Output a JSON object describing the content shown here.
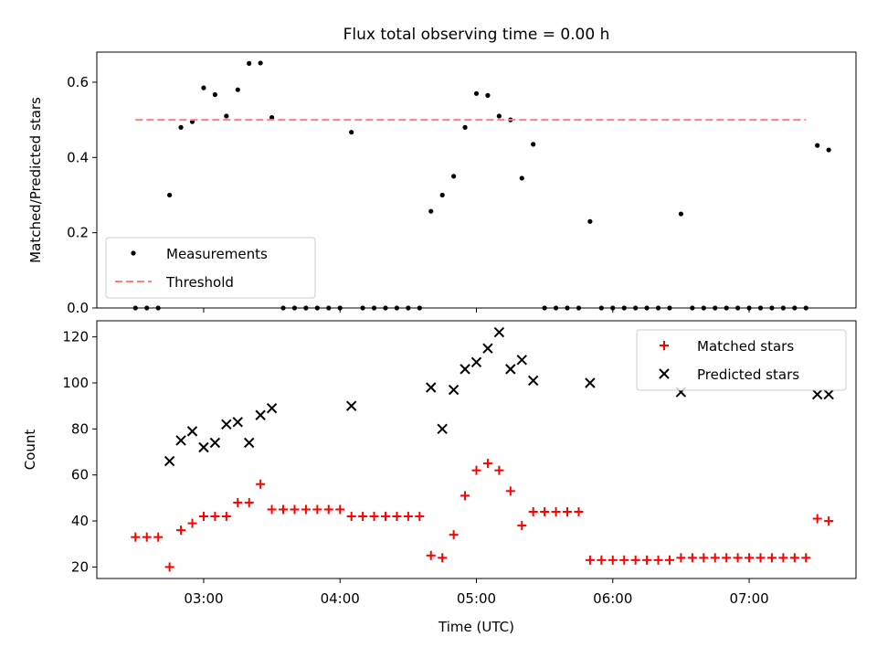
{
  "chart_data": [
    {
      "type": "scatter",
      "title": "Flux total observing time = 0.00 h",
      "xlabel": "",
      "ylabel": "Matched/Predicted stars",
      "xlim": [
        "02:13",
        "07:47"
      ],
      "ylim": [
        0,
        0.68
      ],
      "yticks": [
        0.0,
        0.2,
        0.4,
        0.6
      ],
      "ytick_labels": [
        "0.0",
        "0.2",
        "0.4",
        "0.6"
      ],
      "legend_placement": "lower-left",
      "series": [
        {
          "name": "Measurements",
          "marker": "dot",
          "color": "#000000",
          "points": [
            [
              "02:30",
              0.0
            ],
            [
              "02:35",
              0.0
            ],
            [
              "02:40",
              0.0
            ],
            [
              "02:45",
              0.3
            ],
            [
              "02:50",
              0.48
            ],
            [
              "02:55",
              0.495
            ],
            [
              "03:00",
              0.585
            ],
            [
              "03:05",
              0.567
            ],
            [
              "03:10",
              0.51
            ],
            [
              "03:15",
              0.58
            ],
            [
              "03:20",
              0.65
            ],
            [
              "03:25",
              0.651
            ],
            [
              "03:30",
              0.506
            ],
            [
              "03:35",
              0.0
            ],
            [
              "03:40",
              0.0
            ],
            [
              "03:45",
              0.0
            ],
            [
              "03:50",
              0.0
            ],
            [
              "03:55",
              0.0
            ],
            [
              "04:00",
              0.0
            ],
            [
              "04:05",
              0.467
            ],
            [
              "04:10",
              0.0
            ],
            [
              "04:15",
              0.0
            ],
            [
              "04:20",
              0.0
            ],
            [
              "04:25",
              0.0
            ],
            [
              "04:30",
              0.0
            ],
            [
              "04:35",
              0.0
            ],
            [
              "04:40",
              0.257
            ],
            [
              "04:45",
              0.3
            ],
            [
              "04:50",
              0.35
            ],
            [
              "04:55",
              0.48
            ],
            [
              "05:00",
              0.57
            ],
            [
              "05:05",
              0.565
            ],
            [
              "05:10",
              0.51
            ],
            [
              "05:15",
              0.5
            ],
            [
              "05:20",
              0.345
            ],
            [
              "05:25",
              0.435
            ],
            [
              "05:30",
              0.0
            ],
            [
              "05:35",
              0.0
            ],
            [
              "05:40",
              0.0
            ],
            [
              "05:45",
              0.0
            ],
            [
              "05:50",
              0.23
            ],
            [
              "05:55",
              0.0
            ],
            [
              "06:00",
              0.0
            ],
            [
              "06:05",
              0.0
            ],
            [
              "06:10",
              0.0
            ],
            [
              "06:15",
              0.0
            ],
            [
              "06:20",
              0.0
            ],
            [
              "06:25",
              0.0
            ],
            [
              "06:30",
              0.25
            ],
            [
              "06:35",
              0.0
            ],
            [
              "06:40",
              0.0
            ],
            [
              "06:45",
              0.0
            ],
            [
              "06:50",
              0.0
            ],
            [
              "06:55",
              0.0
            ],
            [
              "07:00",
              0.0
            ],
            [
              "07:05",
              0.0
            ],
            [
              "07:10",
              0.0
            ],
            [
              "07:15",
              0.0
            ],
            [
              "07:20",
              0.0
            ],
            [
              "07:25",
              0.0
            ],
            [
              "07:30",
              0.432
            ],
            [
              "07:35",
              0.42
            ]
          ]
        },
        {
          "name": "Threshold",
          "line": "dashed",
          "color": "#ff7f7f",
          "points": [
            [
              "02:30",
              0.5
            ],
            [
              "07:25",
              0.5
            ]
          ]
        }
      ]
    },
    {
      "type": "scatter",
      "title": "",
      "xlabel": "Time (UTC)",
      "ylabel": "Count",
      "xlim": [
        "02:13",
        "07:47"
      ],
      "ylim": [
        15,
        127
      ],
      "yticks": [
        20,
        40,
        60,
        80,
        100,
        120
      ],
      "ytick_labels": [
        "20",
        "40",
        "60",
        "80",
        "100",
        "120"
      ],
      "xticks": [
        "03:00",
        "04:00",
        "05:00",
        "06:00",
        "07:00"
      ],
      "xtick_labels": [
        "03:00",
        "04:00",
        "05:00",
        "06:00",
        "07:00"
      ],
      "legend_placement": "top-right",
      "series": [
        {
          "name": "Matched stars",
          "marker": "plus",
          "color": "#ff0000",
          "points": [
            [
              "02:30",
              33
            ],
            [
              "02:35",
              33
            ],
            [
              "02:40",
              33
            ],
            [
              "02:45",
              20
            ],
            [
              "02:50",
              36
            ],
            [
              "02:55",
              39
            ],
            [
              "03:00",
              42
            ],
            [
              "03:05",
              42
            ],
            [
              "03:10",
              42
            ],
            [
              "03:15",
              48
            ],
            [
              "03:20",
              48
            ],
            [
              "03:25",
              56
            ],
            [
              "03:30",
              45
            ],
            [
              "03:35",
              45
            ],
            [
              "03:40",
              45
            ],
            [
              "03:45",
              45
            ],
            [
              "03:50",
              45
            ],
            [
              "03:55",
              45
            ],
            [
              "04:00",
              45
            ],
            [
              "04:05",
              42
            ],
            [
              "04:10",
              42
            ],
            [
              "04:15",
              42
            ],
            [
              "04:20",
              42
            ],
            [
              "04:25",
              42
            ],
            [
              "04:30",
              42
            ],
            [
              "04:35",
              42
            ],
            [
              "04:40",
              25
            ],
            [
              "04:45",
              24
            ],
            [
              "04:50",
              34
            ],
            [
              "04:55",
              51
            ],
            [
              "05:00",
              62
            ],
            [
              "05:05",
              65
            ],
            [
              "05:10",
              62
            ],
            [
              "05:15",
              53
            ],
            [
              "05:20",
              38
            ],
            [
              "05:25",
              44
            ],
            [
              "05:30",
              44
            ],
            [
              "05:35",
              44
            ],
            [
              "05:40",
              44
            ],
            [
              "05:45",
              44
            ],
            [
              "05:50",
              23
            ],
            [
              "05:55",
              23
            ],
            [
              "06:00",
              23
            ],
            [
              "06:05",
              23
            ],
            [
              "06:10",
              23
            ],
            [
              "06:15",
              23
            ],
            [
              "06:20",
              23
            ],
            [
              "06:25",
              23
            ],
            [
              "06:30",
              24
            ],
            [
              "06:35",
              24
            ],
            [
              "06:40",
              24
            ],
            [
              "06:45",
              24
            ],
            [
              "06:50",
              24
            ],
            [
              "06:55",
              24
            ],
            [
              "07:00",
              24
            ],
            [
              "07:05",
              24
            ],
            [
              "07:10",
              24
            ],
            [
              "07:15",
              24
            ],
            [
              "07:20",
              24
            ],
            [
              "07:25",
              24
            ],
            [
              "07:30",
              41
            ],
            [
              "07:35",
              40
            ]
          ]
        },
        {
          "name": "Predicted stars",
          "marker": "x",
          "color": "#000000",
          "points": [
            [
              "02:45",
              66
            ],
            [
              "02:50",
              75
            ],
            [
              "02:55",
              79
            ],
            [
              "03:00",
              72
            ],
            [
              "03:05",
              74
            ],
            [
              "03:10",
              82
            ],
            [
              "03:15",
              83
            ],
            [
              "03:20",
              74
            ],
            [
              "03:25",
              86
            ],
            [
              "03:30",
              89
            ],
            [
              "04:05",
              90
            ],
            [
              "04:40",
              98
            ],
            [
              "04:45",
              80
            ],
            [
              "04:50",
              97
            ],
            [
              "04:55",
              106
            ],
            [
              "05:00",
              109
            ],
            [
              "05:05",
              115
            ],
            [
              "05:10",
              122
            ],
            [
              "05:15",
              106
            ],
            [
              "05:20",
              110
            ],
            [
              "05:25",
              101
            ],
            [
              "05:50",
              100
            ],
            [
              "06:30",
              96
            ],
            [
              "07:30",
              95
            ],
            [
              "07:35",
              95
            ]
          ]
        }
      ]
    }
  ]
}
